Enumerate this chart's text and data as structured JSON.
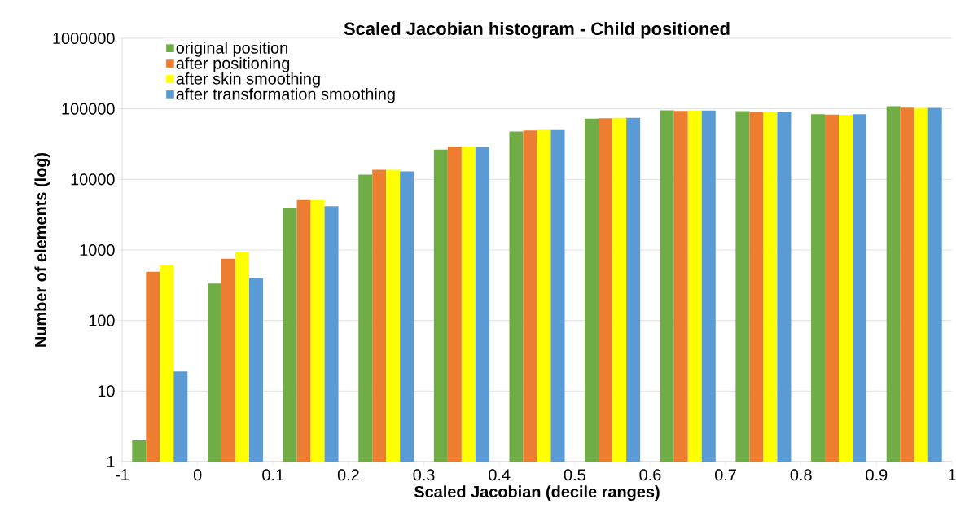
{
  "chart_data": {
    "type": "bar",
    "title": "Scaled Jacobian histogram - Child positioned",
    "xlabel": "Scaled Jacobian (decile ranges)",
    "ylabel": "Number of elements (log)",
    "categories": [
      null,
      null,
      null,
      null,
      null,
      null,
      null,
      null,
      null,
      null,
      null
    ],
    "annotations": [
      "-1",
      "0",
      "0.1",
      "0.2",
      "0.3",
      "0.4",
      "0.5",
      "0.6",
      "0.7",
      "0.8",
      "0.9",
      "1"
    ],
    "series": [
      {
        "name": "original position",
        "color": "#70ad47",
        "values": [
          2,
          335,
          3870,
          11700,
          26400,
          47700,
          72500,
          95300,
          92700,
          83800,
          109000
        ]
      },
      {
        "name": "after positioning",
        "color": "#ed7d31",
        "values": [
          490,
          752,
          5090,
          13700,
          29100,
          49500,
          73500,
          93300,
          89800,
          82800,
          104000
        ]
      },
      {
        "name": "after skin smoothing",
        "color": "#ffff00",
        "values": [
          611,
          928,
          5090,
          13700,
          29100,
          50500,
          74600,
          94400,
          89800,
          82200,
          103000
        ]
      },
      {
        "name": "after transformation smoothing",
        "color": "#5b9bd5",
        "values": [
          19,
          397,
          4170,
          13000,
          28600,
          50000,
          74600,
          94400,
          89800,
          83800,
          103000
        ]
      }
    ],
    "log": "y",
    "ylim": [
      1,
      1000000
    ],
    "yticks": [
      1,
      10,
      100,
      1000,
      10000,
      100000,
      1000000
    ],
    "grid": "y",
    "legend": "top left"
  }
}
